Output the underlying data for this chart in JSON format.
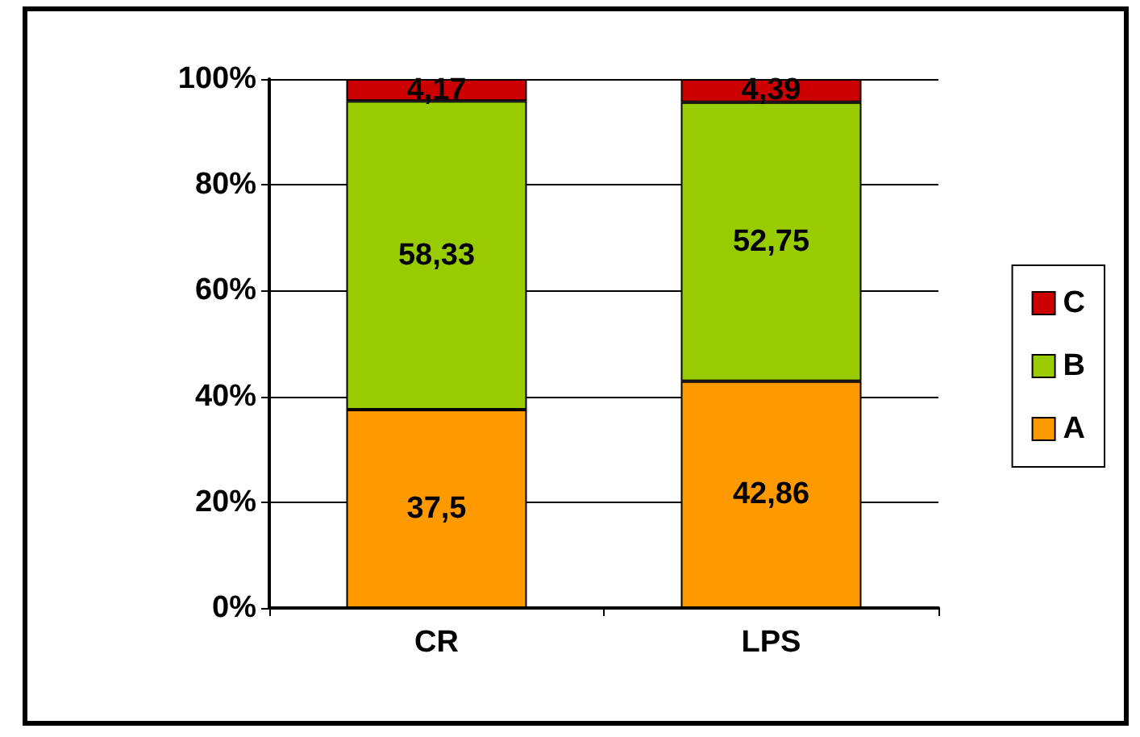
{
  "chart_data": {
    "type": "bar",
    "stacked": true,
    "categories": [
      "CR",
      "LPS"
    ],
    "series": [
      {
        "name": "A",
        "color": "#ff9900",
        "values": [
          37.5,
          42.86
        ],
        "value_labels": [
          "37,5",
          "42,86"
        ]
      },
      {
        "name": "B",
        "color": "#99cc00",
        "values": [
          58.33,
          52.75
        ],
        "value_labels": [
          "58,33",
          "52,75"
        ]
      },
      {
        "name": "C",
        "color": "#cc0000",
        "values": [
          4.17,
          4.39
        ],
        "value_labels": [
          "4,17",
          "4,39"
        ]
      }
    ],
    "ylim": [
      0,
      100
    ],
    "yticks": [
      {
        "value": 0,
        "label": "0%"
      },
      {
        "value": 20,
        "label": "20%"
      },
      {
        "value": 40,
        "label": "40%"
      },
      {
        "value": 60,
        "label": "60%"
      },
      {
        "value": 80,
        "label": "80%"
      },
      {
        "value": 100,
        "label": "100%"
      }
    ],
    "grid": "y",
    "legend": "right"
  }
}
